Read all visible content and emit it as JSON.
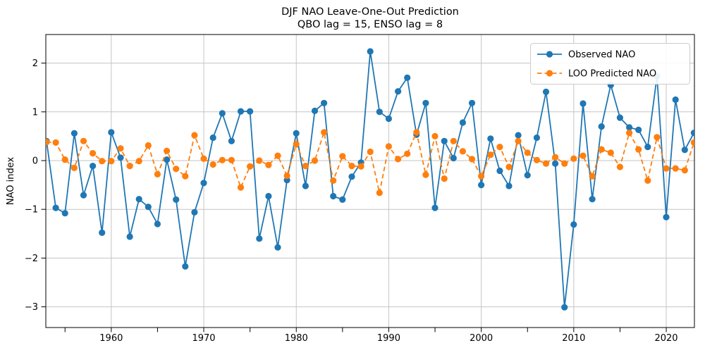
{
  "title": {
    "line1": "DJF NAO Leave-One-Out Prediction",
    "line2": "QBO lag = 15, ENSO lag = 8"
  },
  "y_axis": {
    "label": "NAO index",
    "tick_labels": [
      "−3",
      "−2",
      "−1",
      "0",
      "1",
      "2"
    ],
    "tick_values": [
      -3,
      -2,
      -1,
      0,
      1,
      2
    ]
  },
  "x_axis": {
    "major_tick_labels": [
      "1960",
      "1970",
      "1980",
      "1990",
      "2000",
      "2010",
      "2020"
    ],
    "major_tick_values": [
      1960,
      1970,
      1980,
      1990,
      2000,
      2010,
      2020
    ],
    "minor_tick_values": [
      1955,
      1965,
      1975,
      1985,
      1995,
      2005,
      2015
    ]
  },
  "legend": {
    "items": [
      {
        "label": "Observed NAO",
        "color": "#1f77b4",
        "linestyle": "solid"
      },
      {
        "label": "LOO Predicted NAO",
        "color": "#ff7f0e",
        "linestyle": "dashed"
      }
    ]
  },
  "colors": {
    "observed": "#1f77b4",
    "predicted": "#ff7f0e",
    "grid": "#c4c4c4",
    "spine": "#000000"
  },
  "chart_data": {
    "type": "line",
    "title": "DJF NAO Leave-One-Out Prediction",
    "subtitle": "QBO lag = 15, ENSO lag = 8",
    "xlabel": "",
    "ylabel": "NAO index",
    "grid": true,
    "legend_position": "upper right",
    "xlim": [
      1952.9,
      2023.1
    ],
    "ylim": [
      -3.42,
      2.59
    ],
    "x": [
      1953,
      1954,
      1955,
      1956,
      1957,
      1958,
      1959,
      1960,
      1961,
      1962,
      1963,
      1964,
      1965,
      1966,
      1967,
      1968,
      1969,
      1970,
      1971,
      1972,
      1973,
      1974,
      1975,
      1976,
      1977,
      1978,
      1979,
      1980,
      1981,
      1982,
      1983,
      1984,
      1985,
      1986,
      1987,
      1988,
      1989,
      1990,
      1991,
      1992,
      1993,
      1994,
      1995,
      1996,
      1997,
      1998,
      1999,
      2000,
      2001,
      2002,
      2003,
      2004,
      2005,
      2006,
      2007,
      2008,
      2009,
      2010,
      2011,
      2012,
      2013,
      2014,
      2015,
      2016,
      2017,
      2018,
      2019,
      2020,
      2021,
      2022,
      2023
    ],
    "series": [
      {
        "name": "Observed NAO",
        "color": "#1f77b4",
        "linestyle": "solid",
        "marker": "circle",
        "values": [
          0.4,
          -0.97,
          -1.08,
          0.56,
          -0.71,
          -0.11,
          -1.48,
          0.58,
          0.06,
          -1.56,
          -0.79,
          -0.95,
          -1.3,
          0.02,
          -0.8,
          -2.17,
          -1.06,
          -0.46,
          0.47,
          0.97,
          0.4,
          1.01,
          1.01,
          -1.6,
          -0.73,
          -1.78,
          -0.4,
          0.56,
          -0.52,
          1.02,
          1.18,
          -0.73,
          -0.8,
          -0.33,
          -0.04,
          2.24,
          1.0,
          0.86,
          1.42,
          1.7,
          0.53,
          1.18,
          -0.97,
          0.4,
          0.05,
          0.78,
          1.18,
          -0.5,
          0.45,
          -0.21,
          -0.52,
          0.52,
          -0.3,
          0.47,
          1.41,
          -0.06,
          -3.01,
          -1.31,
          1.17,
          -0.79,
          0.7,
          1.55,
          0.88,
          0.68,
          0.63,
          0.28,
          1.73,
          -1.16,
          1.25,
          0.22,
          0.57
        ]
      },
      {
        "name": "LOO Predicted NAO",
        "color": "#ff7f0e",
        "linestyle": "dashed",
        "marker": "circle",
        "values": [
          0.38,
          0.37,
          0.02,
          -0.15,
          0.4,
          0.15,
          -0.01,
          -0.01,
          0.25,
          -0.11,
          -0.01,
          0.31,
          -0.28,
          0.2,
          -0.17,
          -0.32,
          0.52,
          0.04,
          -0.08,
          0.01,
          0.01,
          -0.55,
          -0.12,
          0.0,
          -0.09,
          0.1,
          -0.31,
          0.34,
          -0.11,
          0.0,
          0.58,
          -0.41,
          0.09,
          -0.11,
          -0.12,
          0.18,
          -0.66,
          0.29,
          0.03,
          0.14,
          0.58,
          -0.29,
          0.5,
          -0.37,
          0.4,
          0.19,
          0.03,
          -0.32,
          0.12,
          0.28,
          -0.13,
          0.4,
          0.16,
          0.01,
          -0.06,
          0.07,
          -0.06,
          0.04,
          0.1,
          -0.32,
          0.23,
          0.16,
          -0.13,
          0.57,
          0.23,
          -0.41,
          0.48,
          -0.16,
          -0.16,
          -0.2,
          0.37
        ]
      }
    ]
  }
}
